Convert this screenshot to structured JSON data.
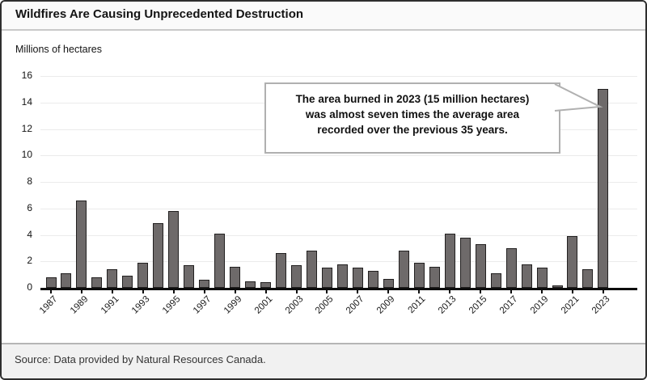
{
  "header": {
    "title": "Wildfires Are Causing Unprecedented Destruction"
  },
  "chart_data": {
    "type": "bar",
    "title": "Wildfires Are Causing Unprecedented Destruction",
    "unit_label": "Millions of hectares",
    "xlabel": "",
    "ylabel": "Millions of hectares",
    "ylim": [
      0,
      16
    ],
    "ytick_step": 2,
    "ytick_labels": [
      "0",
      "2",
      "4",
      "6",
      "8",
      "10",
      "12",
      "14",
      "16"
    ],
    "grid": "horizontal",
    "legend": "none",
    "bar_color": "#6e6a6a",
    "bar_edge_color": "#222020",
    "categories": [
      1987,
      1988,
      1989,
      1990,
      1991,
      1992,
      1993,
      1994,
      1995,
      1996,
      1997,
      1998,
      1999,
      2000,
      2001,
      2002,
      2003,
      2004,
      2005,
      2006,
      2007,
      2008,
      2009,
      2010,
      2011,
      2012,
      2013,
      2014,
      2015,
      2016,
      2017,
      2018,
      2019,
      2020,
      2021,
      2022,
      2023
    ],
    "values": [
      0.8,
      1.1,
      6.6,
      0.8,
      1.4,
      0.9,
      1.9,
      4.9,
      5.8,
      1.7,
      0.6,
      4.1,
      1.6,
      0.5,
      0.4,
      2.6,
      1.7,
      2.8,
      1.5,
      1.8,
      1.5,
      1.3,
      0.7,
      2.8,
      1.9,
      1.6,
      4.1,
      3.8,
      3.3,
      1.1,
      3.0,
      1.8,
      1.5,
      0.2,
      3.9,
      1.4,
      15.0
    ],
    "xtick_labels": [
      "1987",
      "1989",
      "1991",
      "1993",
      "1995",
      "1997",
      "1999",
      "2001",
      "2003",
      "2005",
      "2007",
      "2009",
      "2011",
      "2013",
      "2015",
      "2017",
      "2019",
      "2021",
      "2023"
    ]
  },
  "annotation": {
    "lines": [
      "The area burned in 2023 (15 million hectares)",
      "was almost seven times the average area",
      "recorded over the previous 35 years."
    ]
  },
  "footer": {
    "source": "Source: Data provided by Natural Resources Canada."
  }
}
